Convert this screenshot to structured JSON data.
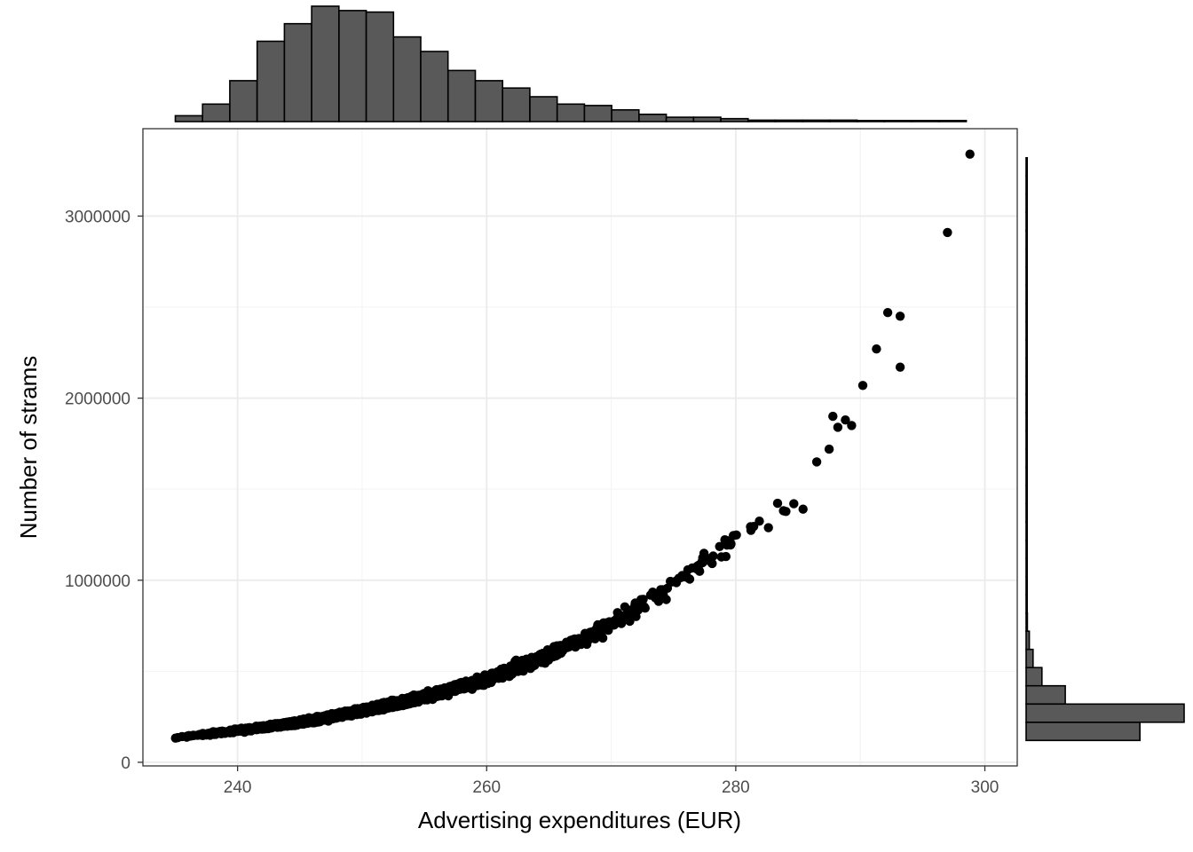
{
  "chart_data": {
    "type": "scatter",
    "title": "",
    "xlabel": "Advertising expenditures (EUR)",
    "ylabel": "Number of strams",
    "xlim": [
      232.4,
      302.6
    ],
    "ylim": [
      -20000,
      3480000
    ],
    "x_ticks": [
      240,
      260,
      280,
      300
    ],
    "x_tick_labels": [
      "240",
      "260",
      "280",
      "300"
    ],
    "y_ticks": [
      0,
      1000000,
      2000000,
      3000000
    ],
    "y_tick_labels": [
      "0",
      "1000000",
      "2000000",
      "3000000"
    ],
    "grid": true,
    "legend": "none",
    "marginal_histograms": true,
    "trend": {
      "description_x": [
        235,
        240,
        245,
        250,
        255,
        260,
        265,
        270,
        275,
        280,
        285,
        290,
        295,
        299
      ],
      "description_y": [
        135000,
        175000,
        220000,
        285000,
        360000,
        460000,
        590000,
        760000,
        980000,
        1240000,
        1450000,
        1950000,
        2500000,
        3350000
      ]
    },
    "highlighted_points": {
      "x": [
        285.4,
        286.5,
        287.5,
        287.8,
        288.2,
        288.8,
        289.3,
        290.2,
        291.3,
        292.2,
        293.2,
        293.2,
        297.0,
        298.8
      ],
      "y": [
        1390000,
        1650000,
        1720000,
        1900000,
        1840000,
        1880000,
        1850000,
        2070000,
        2270000,
        2470000,
        2450000,
        2170000,
        2910000,
        3340000
      ]
    },
    "x_histogram": {
      "bin_start": 235.0,
      "bin_width": 2.19,
      "counts": [
        4,
        12,
        28,
        55,
        67,
        79,
        76,
        75,
        58,
        48,
        35,
        28,
        23,
        17,
        12,
        11,
        8,
        5,
        3,
        3,
        2,
        1,
        1,
        1,
        1,
        0.5,
        0.5,
        0.5,
        0.5
      ]
    },
    "y_histogram": {
      "bin_start": 120000,
      "bin_width": 100000,
      "counts": [
        180,
        250,
        62,
        25,
        11,
        5,
        2,
        1.5,
        1,
        1,
        0.7,
        0.5,
        0.5,
        0.3,
        0.3,
        0.3,
        0.3,
        0.3,
        0.2,
        0.2,
        0.2,
        0.2,
        0.1,
        0.1,
        0.1,
        0.1,
        0.1,
        0.1,
        0.1,
        0.1,
        0.1,
        0.1
      ]
    },
    "colors": {
      "points": "#000000",
      "bars_fill": "#595959",
      "bars_stroke": "#000000",
      "panel_border": "#333333",
      "grid_major": "#ebebeb",
      "grid_minor": "#f3f3f3"
    }
  }
}
